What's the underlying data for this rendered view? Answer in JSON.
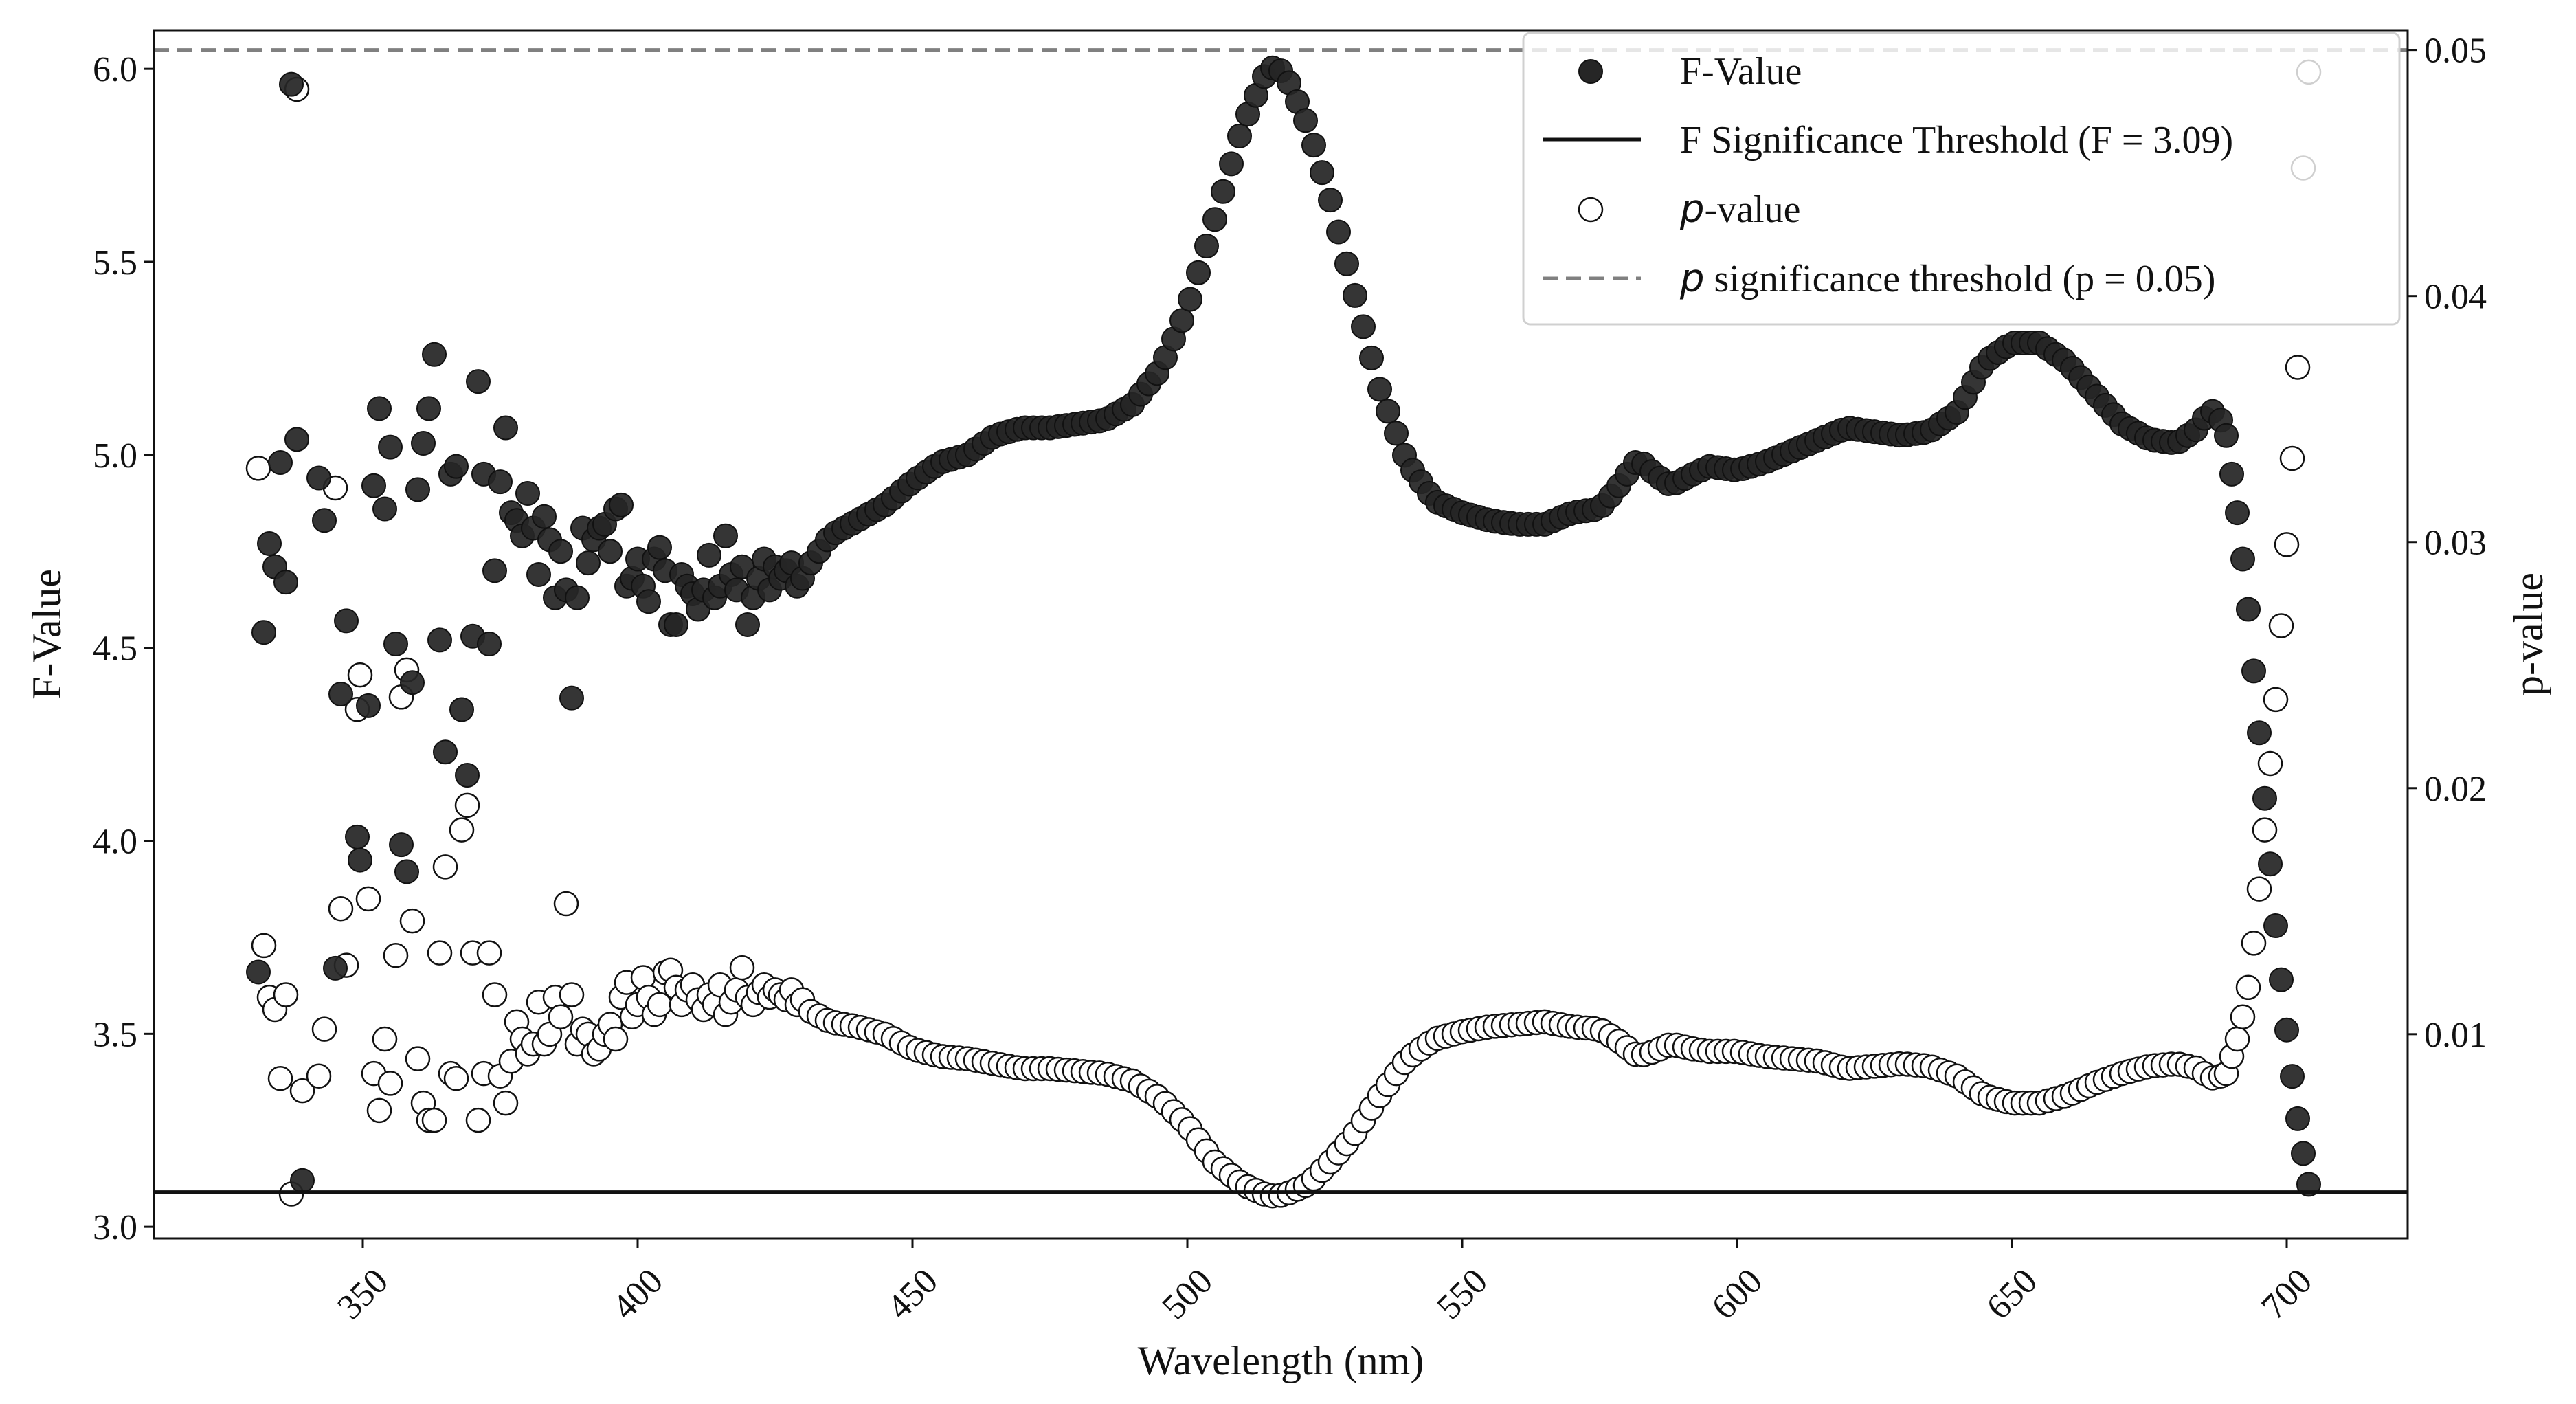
{
  "chart_data": {
    "type": "scatter",
    "title": "",
    "xlabel": "Wavelength (nm)",
    "ylabel_left": "F-Value",
    "ylabel_right": "p-value",
    "xlim": [
      312,
      722
    ],
    "ylim_left": [
      2.97,
      6.1
    ],
    "ylim_right": [
      0.0017,
      0.0508
    ],
    "x_ticks": [
      350,
      400,
      450,
      500,
      550,
      600,
      650,
      700
    ],
    "y_ticks_left": [
      3.0,
      3.5,
      4.0,
      4.5,
      5.0,
      5.5,
      6.0
    ],
    "y_ticks_left_labels": [
      "3.0",
      "3.5",
      "4.0",
      "4.5",
      "5.0",
      "5.5",
      "6.0"
    ],
    "y_ticks_right": [
      0.01,
      0.02,
      0.03,
      0.04,
      0.05
    ],
    "y_ticks_right_labels": [
      "0.01",
      "0.02",
      "0.03",
      "0.04",
      "0.05"
    ],
    "f_threshold": 3.09,
    "p_threshold": 0.05,
    "legend_position": "top-right",
    "legend": [
      {
        "key": "f",
        "label": "F-Value"
      },
      {
        "key": "fth",
        "label": "F Significance Threshold (F = 3.09)"
      },
      {
        "key": "p",
        "label_prefix": "p",
        "label": "-value"
      },
      {
        "key": "pth",
        "label_prefix": "p",
        "label": " significance threshold (p = 0.05)"
      }
    ],
    "colors": {
      "f_marker": "#262626",
      "p_marker": "#ffffff",
      "marker_edge": "#111111",
      "f_threshold_line": "#111111",
      "p_threshold_line": "#808080"
    },
    "noisy_region": {
      "f_points": [
        [
          331,
          3.66
        ],
        [
          332,
          4.54
        ],
        [
          333,
          4.77
        ],
        [
          334,
          4.71
        ],
        [
          335,
          4.98
        ],
        [
          336,
          4.67
        ],
        [
          337,
          5.96
        ],
        [
          338,
          5.04
        ],
        [
          339,
          3.12
        ],
        [
          342,
          4.94
        ],
        [
          343,
          4.83
        ],
        [
          345,
          3.67
        ],
        [
          346,
          4.38
        ],
        [
          347,
          4.57
        ],
        [
          349,
          4.01
        ],
        [
          349.5,
          3.95
        ],
        [
          351,
          4.35
        ],
        [
          352,
          4.92
        ],
        [
          353,
          5.12
        ],
        [
          354,
          4.86
        ],
        [
          355,
          5.02
        ],
        [
          356,
          4.51
        ],
        [
          357,
          3.99
        ],
        [
          358,
          3.92
        ],
        [
          359,
          4.41
        ],
        [
          360,
          4.91
        ],
        [
          361,
          5.03
        ],
        [
          362,
          5.12
        ],
        [
          363,
          5.26
        ],
        [
          364,
          4.52
        ],
        [
          365,
          4.23
        ],
        [
          366,
          4.95
        ],
        [
          367,
          4.97
        ],
        [
          368,
          4.34
        ],
        [
          369,
          4.17
        ],
        [
          370,
          4.53
        ],
        [
          371,
          5.19
        ],
        [
          372,
          4.95
        ],
        [
          373,
          4.51
        ],
        [
          374,
          4.7
        ],
        [
          375,
          4.93
        ],
        [
          376,
          5.07
        ],
        [
          377,
          4.85
        ],
        [
          378,
          4.83
        ],
        [
          379,
          4.79
        ],
        [
          380,
          4.9
        ],
        [
          381,
          4.81
        ],
        [
          382,
          4.69
        ],
        [
          383,
          4.84
        ],
        [
          384,
          4.78
        ],
        [
          385,
          4.63
        ],
        [
          386,
          4.75
        ],
        [
          387,
          4.65
        ],
        [
          388,
          4.37
        ],
        [
          389,
          4.63
        ],
        [
          390,
          4.81
        ],
        [
          391,
          4.72
        ],
        [
          392,
          4.78
        ],
        [
          393,
          4.81
        ],
        [
          394,
          4.82
        ],
        [
          395,
          4.75
        ],
        [
          396,
          4.86
        ],
        [
          397,
          4.87
        ],
        [
          398,
          4.66
        ],
        [
          399,
          4.68
        ],
        [
          400,
          4.73
        ],
        [
          401,
          4.66
        ],
        [
          402,
          4.62
        ],
        [
          403,
          4.73
        ],
        [
          404,
          4.76
        ],
        [
          405,
          4.7
        ],
        [
          406,
          4.56
        ],
        [
          407,
          4.56
        ],
        [
          408,
          4.69
        ],
        [
          409,
          4.66
        ],
        [
          410,
          4.64
        ],
        [
          411,
          4.6
        ],
        [
          412,
          4.65
        ],
        [
          413,
          4.74
        ],
        [
          414,
          4.63
        ],
        [
          415,
          4.66
        ],
        [
          416,
          4.79
        ],
        [
          417,
          4.69
        ],
        [
          418,
          4.65
        ],
        [
          419,
          4.71
        ],
        [
          420,
          4.56
        ],
        [
          421,
          4.63
        ],
        [
          422,
          4.68
        ],
        [
          423,
          4.73
        ],
        [
          424,
          4.65
        ],
        [
          425,
          4.71
        ],
        [
          426,
          4.68
        ],
        [
          427,
          4.7
        ],
        [
          428,
          4.72
        ],
        [
          429,
          4.66
        ],
        [
          430,
          4.68
        ]
      ],
      "p_points": [
        [
          331,
          0.033
        ],
        [
          332,
          0.0136
        ],
        [
          333,
          0.0115
        ],
        [
          334,
          0.011
        ],
        [
          335,
          0.0082
        ],
        [
          336,
          0.0116
        ],
        [
          337,
          0.0035
        ],
        [
          338,
          0.0484
        ],
        [
          339,
          0.0077
        ],
        [
          342,
          0.0083
        ],
        [
          343,
          0.0102
        ],
        [
          345,
          0.0322
        ],
        [
          346,
          0.0151
        ],
        [
          347,
          0.0128
        ],
        [
          349,
          0.0232
        ],
        [
          349.5,
          0.0246
        ],
        [
          351,
          0.0155
        ],
        [
          352,
          0.0084
        ],
        [
          353,
          0.0069
        ],
        [
          354,
          0.0098
        ],
        [
          355,
          0.008
        ],
        [
          356,
          0.0132
        ],
        [
          357,
          0.0237
        ],
        [
          358,
          0.0248
        ],
        [
          359,
          0.0146
        ],
        [
          360,
          0.009
        ],
        [
          361,
          0.0072
        ],
        [
          362,
          0.0065
        ],
        [
          363,
          0.0065
        ],
        [
          364,
          0.0133
        ],
        [
          365,
          0.0168
        ],
        [
          366,
          0.0084
        ],
        [
          367,
          0.0082
        ],
        [
          368,
          0.0183
        ],
        [
          369,
          0.0193
        ],
        [
          370,
          0.0133
        ],
        [
          371,
          0.0065
        ],
        [
          372,
          0.0084
        ],
        [
          373,
          0.0133
        ],
        [
          374,
          0.0116
        ],
        [
          375,
          0.0083
        ],
        [
          376,
          0.0072
        ],
        [
          377,
          0.0089
        ],
        [
          378,
          0.0105
        ],
        [
          379,
          0.0098
        ],
        [
          380,
          0.0092
        ],
        [
          381,
          0.0096
        ],
        [
          382,
          0.0113
        ],
        [
          383,
          0.0096
        ],
        [
          384,
          0.01
        ],
        [
          385,
          0.0115
        ],
        [
          386,
          0.0107
        ],
        [
          387,
          0.0153
        ],
        [
          388,
          0.0116
        ],
        [
          389,
          0.0096
        ],
        [
          390,
          0.0102
        ],
        [
          391,
          0.01
        ],
        [
          392,
          0.0092
        ],
        [
          393,
          0.0094
        ],
        [
          394,
          0.01
        ],
        [
          395,
          0.0104
        ],
        [
          396,
          0.0098
        ],
        [
          397,
          0.0115
        ],
        [
          398,
          0.0121
        ],
        [
          399,
          0.0107
        ],
        [
          400,
          0.0112
        ],
        [
          401,
          0.0123
        ],
        [
          402,
          0.0115
        ],
        [
          403,
          0.0108
        ],
        [
          404,
          0.0112
        ],
        [
          405,
          0.0125
        ],
        [
          406,
          0.0126
        ],
        [
          407,
          0.0119
        ],
        [
          408,
          0.0112
        ],
        [
          409,
          0.0118
        ],
        [
          410,
          0.012
        ],
        [
          411,
          0.0114
        ],
        [
          412,
          0.011
        ],
        [
          413,
          0.0116
        ],
        [
          414,
          0.0112
        ],
        [
          415,
          0.012
        ],
        [
          416,
          0.0108
        ],
        [
          417,
          0.0113
        ],
        [
          418,
          0.0118
        ],
        [
          419,
          0.0127
        ],
        [
          420,
          0.0115
        ],
        [
          421,
          0.0112
        ],
        [
          422,
          0.0117
        ],
        [
          423,
          0.012
        ],
        [
          424,
          0.0115
        ],
        [
          425,
          0.0118
        ],
        [
          426,
          0.0116
        ],
        [
          427,
          0.0114
        ],
        [
          428,
          0.0118
        ],
        [
          429,
          0.0112
        ],
        [
          430,
          0.0114
        ]
      ]
    },
    "smooth_region": {
      "x_start": 430,
      "x_end": 688,
      "x_step": 1.5,
      "f_control_points": [
        [
          430,
          4.69
        ],
        [
          435,
          4.79
        ],
        [
          440,
          4.83
        ],
        [
          445,
          4.87
        ],
        [
          450,
          4.93
        ],
        [
          455,
          4.98
        ],
        [
          460,
          5.0
        ],
        [
          465,
          5.05
        ],
        [
          470,
          5.07
        ],
        [
          475,
          5.07
        ],
        [
          480,
          5.08
        ],
        [
          485,
          5.09
        ],
        [
          490,
          5.13
        ],
        [
          495,
          5.22
        ],
        [
          500,
          5.38
        ],
        [
          505,
          5.61
        ],
        [
          510,
          5.85
        ],
        [
          514,
          5.98
        ],
        [
          516,
          6.01
        ],
        [
          518,
          5.98
        ],
        [
          522,
          5.85
        ],
        [
          526,
          5.66
        ],
        [
          530,
          5.44
        ],
        [
          535,
          5.17
        ],
        [
          540,
          4.98
        ],
        [
          545,
          4.88
        ],
        [
          550,
          4.85
        ],
        [
          555,
          4.83
        ],
        [
          560,
          4.82
        ],
        [
          565,
          4.82
        ],
        [
          570,
          4.85
        ],
        [
          575,
          4.86
        ],
        [
          578,
          4.91
        ],
        [
          582,
          4.99
        ],
        [
          585,
          4.95
        ],
        [
          588,
          4.92
        ],
        [
          592,
          4.95
        ],
        [
          595,
          4.97
        ],
        [
          600,
          4.96
        ],
        [
          605,
          4.98
        ],
        [
          610,
          5.01
        ],
        [
          615,
          5.04
        ],
        [
          620,
          5.07
        ],
        [
          625,
          5.06
        ],
        [
          630,
          5.05
        ],
        [
          635,
          5.06
        ],
        [
          640,
          5.11
        ],
        [
          645,
          5.24
        ],
        [
          650,
          5.29
        ],
        [
          655,
          5.29
        ],
        [
          660,
          5.24
        ],
        [
          665,
          5.16
        ],
        [
          670,
          5.08
        ],
        [
          675,
          5.04
        ],
        [
          680,
          5.03
        ],
        [
          684,
          5.07
        ],
        [
          686,
          5.12
        ],
        [
          688,
          5.09
        ]
      ],
      "p_control_points": [
        [
          430,
          0.0111
        ],
        [
          435,
          0.0105
        ],
        [
          440,
          0.0103
        ],
        [
          445,
          0.01
        ],
        [
          450,
          0.0094
        ],
        [
          455,
          0.0091
        ],
        [
          460,
          0.009
        ],
        [
          465,
          0.0088
        ],
        [
          470,
          0.0086
        ],
        [
          475,
          0.0086
        ],
        [
          480,
          0.0085
        ],
        [
          485,
          0.0084
        ],
        [
          490,
          0.0081
        ],
        [
          495,
          0.0074
        ],
        [
          500,
          0.0063
        ],
        [
          505,
          0.0048
        ],
        [
          510,
          0.0039
        ],
        [
          514,
          0.0035
        ],
        [
          516,
          0.0034
        ],
        [
          518,
          0.0035
        ],
        [
          522,
          0.0039
        ],
        [
          526,
          0.0048
        ],
        [
          530,
          0.0058
        ],
        [
          535,
          0.0075
        ],
        [
          540,
          0.009
        ],
        [
          545,
          0.0098
        ],
        [
          550,
          0.0101
        ],
        [
          555,
          0.0103
        ],
        [
          560,
          0.0104
        ],
        [
          565,
          0.0105
        ],
        [
          570,
          0.0103
        ],
        [
          575,
          0.0102
        ],
        [
          578,
          0.0098
        ],
        [
          582,
          0.0091
        ],
        [
          585,
          0.0093
        ],
        [
          588,
          0.0096
        ],
        [
          592,
          0.0094
        ],
        [
          595,
          0.0093
        ],
        [
          600,
          0.0093
        ],
        [
          605,
          0.0091
        ],
        [
          610,
          0.009
        ],
        [
          615,
          0.0089
        ],
        [
          620,
          0.0086
        ],
        [
          625,
          0.0087
        ],
        [
          630,
          0.0088
        ],
        [
          635,
          0.0087
        ],
        [
          640,
          0.0083
        ],
        [
          645,
          0.0075
        ],
        [
          650,
          0.0072
        ],
        [
          655,
          0.0072
        ],
        [
          660,
          0.0075
        ],
        [
          665,
          0.008
        ],
        [
          670,
          0.0084
        ],
        [
          675,
          0.0087
        ],
        [
          680,
          0.0088
        ],
        [
          684,
          0.0086
        ],
        [
          686,
          0.0082
        ],
        [
          688,
          0.0083
        ]
      ]
    },
    "tail_region": {
      "f_points": [
        [
          689,
          5.05
        ],
        [
          690,
          4.95
        ],
        [
          691,
          4.85
        ],
        [
          692,
          4.73
        ],
        [
          693,
          4.6
        ],
        [
          694,
          4.44
        ],
        [
          695,
          4.28
        ],
        [
          696,
          4.11
        ],
        [
          697,
          3.94
        ],
        [
          698,
          3.78
        ],
        [
          699,
          3.64
        ],
        [
          700,
          3.51
        ],
        [
          701,
          3.39
        ],
        [
          702,
          3.28
        ],
        [
          703,
          3.19
        ],
        [
          704,
          3.11
        ]
      ],
      "p_points": [
        [
          689,
          0.0084
        ],
        [
          690,
          0.0091
        ],
        [
          691,
          0.0098
        ],
        [
          692,
          0.0107
        ],
        [
          693,
          0.0119
        ],
        [
          694,
          0.0137
        ],
        [
          695,
          0.0159
        ],
        [
          696,
          0.0183
        ],
        [
          697,
          0.021
        ],
        [
          698,
          0.0236
        ],
        [
          699,
          0.0266
        ],
        [
          700,
          0.0299
        ],
        [
          701,
          0.0334
        ],
        [
          702,
          0.0371
        ],
        [
          703,
          0.0452
        ],
        [
          704,
          0.0491
        ]
      ]
    }
  }
}
